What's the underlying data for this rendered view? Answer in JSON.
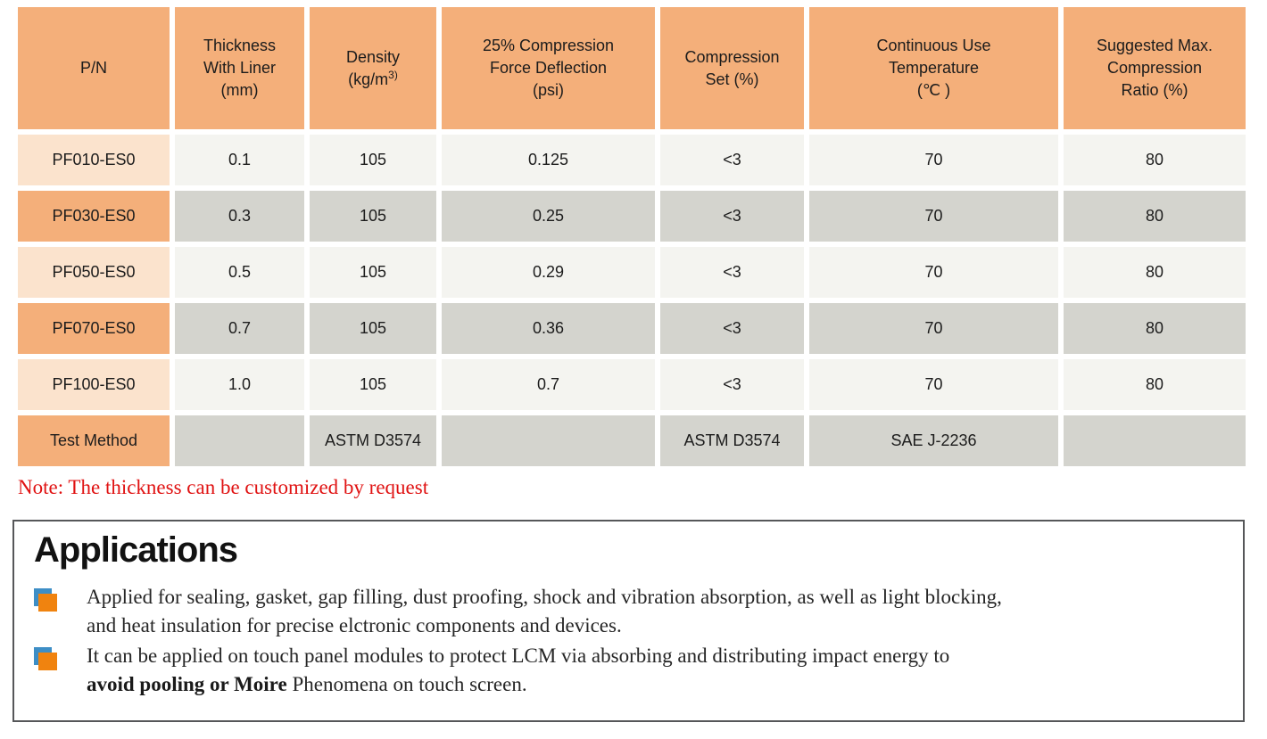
{
  "table": {
    "headers": [
      {
        "text": "P/N"
      },
      {
        "text": "Thickness\nWith Liner\n(mm)"
      },
      {
        "text": "Density\n(kg/m",
        "sup": "3)"
      },
      {
        "text": "25% Compression\nForce Deflection\n(psi)"
      },
      {
        "text": "Compression\nSet (%)"
      },
      {
        "text": "Continuous Use\nTemperature\n(℃ )"
      },
      {
        "text": "Suggested Max.\nCompression\nRatio (%)"
      }
    ],
    "rows": [
      {
        "pn": "PF010-ES0",
        "values": [
          "0.1",
          "105",
          "0.125",
          "<3",
          "70",
          "80"
        ],
        "shade": "a"
      },
      {
        "pn": "PF030-ES0",
        "values": [
          "0.3",
          "105",
          "0.25",
          "<3",
          "70",
          "80"
        ],
        "shade": "b"
      },
      {
        "pn": "PF050-ES0",
        "values": [
          "0.5",
          "105",
          "0.29",
          "<3",
          "70",
          "80"
        ],
        "shade": "a"
      },
      {
        "pn": "PF070-ES0",
        "values": [
          "0.7",
          "105",
          "0.36",
          "<3",
          "70",
          "80"
        ],
        "shade": "b"
      },
      {
        "pn": "PF100-ES0",
        "values": [
          "1.0",
          "105",
          "0.7",
          "<3",
          "70",
          "80"
        ],
        "shade": "a"
      }
    ],
    "test_method": {
      "label": "Test Method",
      "values": [
        "",
        "ASTM D3574",
        "",
        "ASTM D3574",
        "SAE J-2236",
        ""
      ],
      "shade": "b"
    }
  },
  "note": "Note: The thickness can be customized by request",
  "applications": {
    "title": "Applications",
    "bullet_icon": "layered-square-icon",
    "items": [
      {
        "parts": [
          {
            "t": "Applied for sealing, gasket, gap filling, dust proofing, shock and vibration absorption, as well as light blocking,\nand heat insulation for precise elctronic components and devices.",
            "b": false
          }
        ]
      },
      {
        "parts": [
          {
            "t": "It can be applied on touch panel modules to protect LCM via absorbing and distributing impact energy to\n",
            "b": false
          },
          {
            "t": "avoid pooling or Moire",
            "b": true
          },
          {
            "t": " Phenomena on touch screen.",
            "b": false
          }
        ]
      }
    ]
  },
  "colors": {
    "header_orange": "#F4AF7A",
    "row_peach": "#FBE3CD",
    "row_light": "#F4F4F0",
    "row_gray": "#D4D4CE",
    "text_dark": "#1C1C1C",
    "note_red": "#E01212",
    "bullet_orange": "#F0830F",
    "bullet_blue": "#3D8EC6",
    "box_border": "#565759"
  }
}
